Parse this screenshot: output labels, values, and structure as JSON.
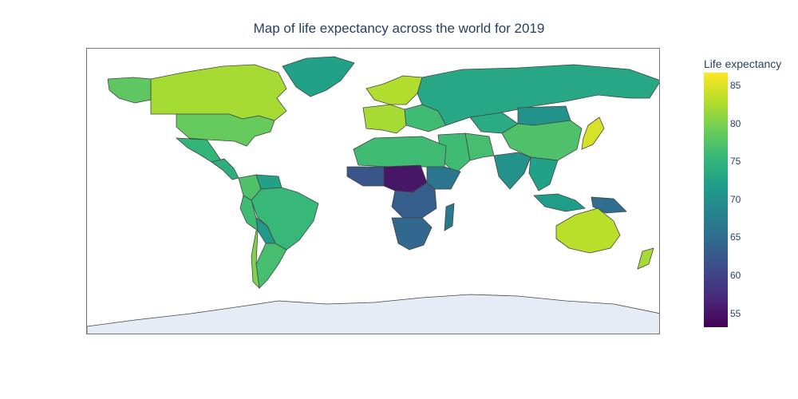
{
  "title": "Map of life expectancy across the world for 2019",
  "colorbar": {
    "title": "Life expectancy",
    "ticks": [
      "85",
      "80",
      "75",
      "70",
      "65",
      "60",
      "55"
    ],
    "colorscale": [
      "#440154",
      "#482878",
      "#3e4989",
      "#31688e",
      "#26828e",
      "#1f9e89",
      "#35b779",
      "#6ece58",
      "#b5de2b",
      "#fde725"
    ],
    "range": [
      53,
      86.5
    ]
  },
  "colors": {
    "border": "#444444",
    "antarctica": "#e5ecf6",
    "frame": "#777777"
  },
  "regions": [
    {
      "name": "Canada",
      "value": 82
    },
    {
      "name": "Greenland",
      "value": 72
    },
    {
      "name": "Alaska",
      "value": 78
    },
    {
      "name": "United States",
      "value": 78.5
    },
    {
      "name": "Mexico",
      "value": 75
    },
    {
      "name": "Central America",
      "value": 74
    },
    {
      "name": "Colombia",
      "value": 77
    },
    {
      "name": "Venezuela",
      "value": 72
    },
    {
      "name": "Peru",
      "value": 76
    },
    {
      "name": "Brazil",
      "value": 75.5
    },
    {
      "name": "Bolivia",
      "value": 71
    },
    {
      "name": "Argentina",
      "value": 76.5
    },
    {
      "name": "Chile",
      "value": 80
    },
    {
      "name": "Iceland & Scandinavia",
      "value": 82.5
    },
    {
      "name": "Western Europe",
      "value": 82
    },
    {
      "name": "Eastern Europe",
      "value": 76
    },
    {
      "name": "Russia",
      "value": 73
    },
    {
      "name": "Kazakhstan",
      "value": 73.5
    },
    {
      "name": "Mongolia",
      "value": 70
    },
    {
      "name": "China",
      "value": 77
    },
    {
      "name": "India",
      "value": 70
    },
    {
      "name": "Middle East",
      "value": 76
    },
    {
      "name": "Iran",
      "value": 76.5
    },
    {
      "name": "Japan",
      "value": 84.5
    },
    {
      "name": "Southeast Asia",
      "value": 72
    },
    {
      "name": "Indonesia",
      "value": 71.5
    },
    {
      "name": "Papua New Guinea",
      "value": 65
    },
    {
      "name": "Australia",
      "value": 83
    },
    {
      "name": "New Zealand",
      "value": 82
    },
    {
      "name": "North Africa",
      "value": 76
    },
    {
      "name": "Sahel",
      "value": 62
    },
    {
      "name": "Central Africa",
      "value": 55
    },
    {
      "name": "Horn of Africa",
      "value": 66
    },
    {
      "name": "East Africa",
      "value": 63
    },
    {
      "name": "Southern Africa",
      "value": 64
    },
    {
      "name": "Madagascar",
      "value": 66.5
    },
    {
      "name": "Antarctica",
      "value": null
    }
  ]
}
